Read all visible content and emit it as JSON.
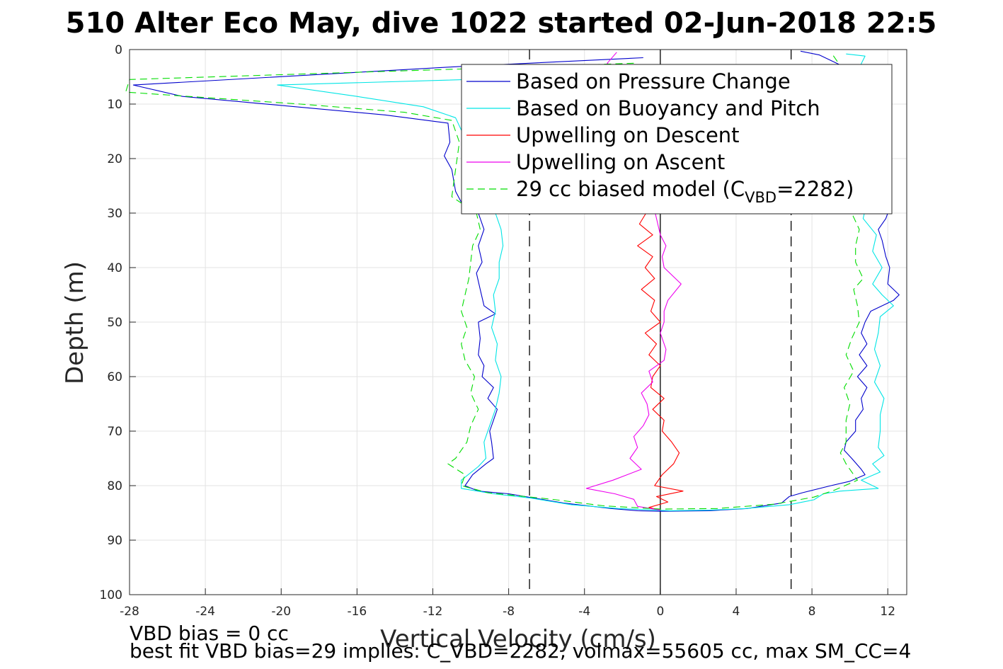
{
  "chart_data": {
    "type": "line",
    "title": "510 Alter Eco May, dive 1022 started 02-Jun-2018 22:5",
    "xlabel": "Vertical Velocity (cm/s)",
    "ylabel": "Depth (m)",
    "xlim": [
      -28,
      13
    ],
    "ylim": [
      0,
      100
    ],
    "y_reversed": true,
    "grid": true,
    "legend_position": "top-right",
    "xticks": [
      -28,
      -24,
      -20,
      -16,
      -12,
      -8,
      -4,
      0,
      4,
      8,
      12
    ],
    "yticks": [
      0,
      10,
      20,
      30,
      40,
      50,
      60,
      70,
      80,
      90,
      100
    ],
    "reference_lines": [
      {
        "x": 0,
        "style": "solid",
        "color": "#000000"
      },
      {
        "x": -6.9,
        "style": "dashed",
        "color": "#000000"
      },
      {
        "x": 6.9,
        "style": "dashed",
        "color": "#000000"
      }
    ],
    "legend": {
      "entries": [
        {
          "label": "Based on Pressure Change",
          "color": "#0000cc",
          "dash": "solid"
        },
        {
          "label": "Based on Buoyancy and Pitch",
          "color": "#00e5e5",
          "dash": "solid"
        },
        {
          "label": "Upwelling on Descent",
          "color": "#ff0000",
          "dash": "solid"
        },
        {
          "label": "Upwelling on Ascent",
          "color": "#ee00ee",
          "dash": "solid"
        },
        {
          "label_main": "29 cc biased model (C",
          "label_sub": "VBD",
          "label_tail": "=2282)",
          "color": "#00dd00",
          "dash": "dashed"
        }
      ]
    },
    "series": [
      {
        "name": "Based on Pressure Change",
        "color": "#0000cc",
        "dash": "solid",
        "points": [
          [
            -0.9,
            1.5
          ],
          [
            -11,
            3.2
          ],
          [
            -27.8,
            6.5
          ],
          [
            -25.2,
            8.6
          ],
          [
            -14.5,
            12
          ],
          [
            -11.2,
            13.5
          ],
          [
            -11.1,
            17
          ],
          [
            -11.4,
            19.5
          ],
          [
            -11,
            22
          ],
          [
            -10.8,
            26
          ],
          [
            -10.5,
            28
          ],
          [
            -9.6,
            30
          ],
          [
            -9.3,
            33
          ],
          [
            -9.6,
            36
          ],
          [
            -9.4,
            39
          ],
          [
            -9.7,
            41
          ],
          [
            -9.5,
            44
          ],
          [
            -9.3,
            47
          ],
          [
            -8.7,
            48.5
          ],
          [
            -9.6,
            50
          ],
          [
            -9.5,
            53
          ],
          [
            -9.6,
            56
          ],
          [
            -9.3,
            58
          ],
          [
            -9.4,
            60
          ],
          [
            -8.8,
            62
          ],
          [
            -9.1,
            64
          ],
          [
            -8.6,
            66
          ],
          [
            -8.8,
            68
          ],
          [
            -9.0,
            70
          ],
          [
            -8.9,
            72
          ],
          [
            -8.8,
            75
          ],
          [
            -9.2,
            76
          ],
          [
            -9.9,
            78
          ],
          [
            -10.3,
            80
          ],
          [
            -9.6,
            81
          ],
          [
            -8,
            81.5
          ],
          [
            -6.8,
            82.2
          ],
          [
            -5.1,
            83.2
          ],
          [
            -2.6,
            84.2
          ],
          [
            -1.2,
            84.6
          ],
          [
            0,
            84.7
          ],
          [
            2.6,
            84.6
          ],
          [
            4.6,
            84.2
          ],
          [
            6.4,
            83.2
          ],
          [
            6.8,
            82
          ],
          [
            7.5,
            81.3
          ],
          [
            9,
            80
          ],
          [
            10,
            79.2
          ],
          [
            10.8,
            78
          ],
          [
            10.6,
            77
          ],
          [
            10.1,
            75
          ],
          [
            9.7,
            73.5
          ],
          [
            9.8,
            72
          ],
          [
            10.3,
            70
          ],
          [
            10.3,
            68
          ],
          [
            10.7,
            66
          ],
          [
            10.6,
            64
          ],
          [
            10.9,
            62
          ],
          [
            10.4,
            60
          ],
          [
            10.9,
            58
          ],
          [
            10.5,
            56
          ],
          [
            10.9,
            54
          ],
          [
            10.6,
            52
          ],
          [
            10.8,
            50
          ],
          [
            11.1,
            48
          ],
          [
            12.3,
            46
          ],
          [
            12.6,
            45
          ],
          [
            12,
            43
          ],
          [
            12.1,
            40
          ],
          [
            11.9,
            38
          ],
          [
            11.7,
            35
          ],
          [
            11.5,
            33
          ],
          [
            11.9,
            31
          ],
          [
            12.2,
            28
          ],
          [
            11.8,
            25
          ],
          [
            11.7,
            20
          ],
          [
            11.4,
            15
          ],
          [
            10.9,
            10
          ],
          [
            10.4,
            6
          ],
          [
            9.6,
            3
          ],
          [
            8.4,
            1
          ],
          [
            7.4,
            0.3
          ]
        ]
      },
      {
        "name": "Based on Buoyancy and Pitch",
        "color": "#00e5e5",
        "dash": "solid",
        "points": [
          [
            -0.9,
            3.5
          ],
          [
            -5.2,
            5
          ],
          [
            -20.2,
            6.5
          ],
          [
            -16,
            8.6
          ],
          [
            -12.5,
            10.5
          ],
          [
            -10.8,
            12.5
          ],
          [
            -10.2,
            17
          ],
          [
            -10.3,
            22
          ],
          [
            -10.1,
            27
          ],
          [
            -8.7,
            30
          ],
          [
            -8.4,
            33
          ],
          [
            -8.3,
            36
          ],
          [
            -8.5,
            39
          ],
          [
            -8.5,
            42
          ],
          [
            -8.8,
            45
          ],
          [
            -8.7,
            48
          ],
          [
            -8.9,
            51
          ],
          [
            -8.6,
            54
          ],
          [
            -8.7,
            57
          ],
          [
            -8.4,
            60
          ],
          [
            -8.5,
            63
          ],
          [
            -8.7,
            66
          ],
          [
            -9.0,
            69
          ],
          [
            -9.3,
            72
          ],
          [
            -9.2,
            75
          ],
          [
            -9.6,
            76.5
          ],
          [
            -10.5,
            79
          ],
          [
            -10.5,
            80.5
          ],
          [
            -8.8,
            81.5
          ],
          [
            -6.8,
            82.3
          ],
          [
            -4.7,
            83.5
          ],
          [
            -2.2,
            84.2
          ],
          [
            0.5,
            84.6
          ],
          [
            2.6,
            84.5
          ],
          [
            4.5,
            84.2
          ],
          [
            6.8,
            83.5
          ],
          [
            8.1,
            82.6
          ],
          [
            8.6,
            81.5
          ],
          [
            9.5,
            81
          ],
          [
            11.5,
            80.5
          ],
          [
            10.6,
            79
          ],
          [
            11.6,
            77.5
          ],
          [
            11.2,
            76
          ],
          [
            11.8,
            74.5
          ],
          [
            11.5,
            73
          ],
          [
            11.6,
            70
          ],
          [
            11.6,
            67
          ],
          [
            11.8,
            64
          ],
          [
            11.3,
            61
          ],
          [
            11.6,
            58
          ],
          [
            11.3,
            55
          ],
          [
            11.5,
            52
          ],
          [
            11.6,
            49
          ],
          [
            12.3,
            47
          ],
          [
            11.7,
            45
          ],
          [
            11.2,
            43
          ],
          [
            11.7,
            40
          ],
          [
            11.2,
            37
          ],
          [
            11.4,
            34
          ],
          [
            10.7,
            31
          ],
          [
            10.9,
            28
          ],
          [
            10.7,
            24
          ],
          [
            10.6,
            19
          ],
          [
            10.5,
            14
          ],
          [
            10.7,
            10
          ],
          [
            10.4,
            7
          ],
          [
            10.4,
            4
          ],
          [
            10.8,
            1.2
          ],
          [
            9.8,
            0.8
          ]
        ]
      },
      {
        "name": "Upwelling on Descent",
        "color": "#ff0000",
        "dash": "solid",
        "points": [
          [
            -0.4,
            28
          ],
          [
            -1.1,
            32
          ],
          [
            -0.4,
            34
          ],
          [
            -1.2,
            36
          ],
          [
            -0.4,
            38
          ],
          [
            -0.8,
            40
          ],
          [
            -0.3,
            42
          ],
          [
            -1,
            44
          ],
          [
            -0.3,
            46
          ],
          [
            -0.5,
            48
          ],
          [
            0,
            50
          ],
          [
            -0.8,
            52
          ],
          [
            -0.2,
            54
          ],
          [
            -0.6,
            56
          ],
          [
            0,
            58
          ],
          [
            -0.4,
            60
          ],
          [
            -0.5,
            62
          ],
          [
            0.2,
            64
          ],
          [
            -0.4,
            66
          ],
          [
            0.2,
            68
          ],
          [
            0.1,
            70
          ],
          [
            0.6,
            72
          ],
          [
            1.0,
            74
          ],
          [
            0.7,
            76
          ],
          [
            0.1,
            78
          ],
          [
            -0.3,
            80
          ],
          [
            1.2,
            81
          ],
          [
            -0.2,
            82
          ],
          [
            0.4,
            83
          ],
          [
            -0.6,
            84
          ],
          [
            0,
            84.5
          ]
        ]
      },
      {
        "name": "Upwelling on Ascent",
        "color": "#ee00ee",
        "dash": "solid",
        "points": [
          [
            -2.3,
            0.5
          ],
          [
            -2.8,
            2.5
          ],
          [
            -1.8,
            5
          ],
          [
            -2.1,
            10
          ],
          [
            -1.8,
            15
          ],
          [
            -1.3,
            20
          ],
          [
            -1.1,
            25
          ],
          [
            -0.4,
            28
          ],
          [
            -0.2,
            31
          ],
          [
            0,
            34
          ],
          [
            0.3,
            36
          ],
          [
            0.1,
            38
          ],
          [
            0.2,
            40
          ],
          [
            1.1,
            43
          ],
          [
            0.4,
            46
          ],
          [
            0.2,
            48
          ],
          [
            0.2,
            50
          ],
          [
            0,
            52
          ],
          [
            0.3,
            55
          ],
          [
            0.2,
            57
          ],
          [
            -0.6,
            59
          ],
          [
            -0.4,
            61
          ],
          [
            -1.0,
            63
          ],
          [
            -0.7,
            65
          ],
          [
            -0.6,
            67
          ],
          [
            -0.9,
            69
          ],
          [
            -1.4,
            71
          ],
          [
            -1.2,
            73
          ],
          [
            -1.6,
            75
          ],
          [
            -1.0,
            77
          ],
          [
            -2.5,
            79
          ],
          [
            -3.9,
            80.5
          ],
          [
            -2.4,
            81.5
          ],
          [
            -1.4,
            82.5
          ],
          [
            -1.2,
            83.8
          ],
          [
            0,
            84.5
          ]
        ]
      },
      {
        "name": "29 cc biased model (C_VBD=2282)",
        "color": "#00dd00",
        "dash": "dashed",
        "points": [
          [
            -1.4,
            2.5
          ],
          [
            -10,
            3.5
          ],
          [
            -28,
            5.5
          ],
          [
            -28.2,
            7.8
          ],
          [
            -19,
            10
          ],
          [
            -13.5,
            11.5
          ],
          [
            -11,
            13
          ],
          [
            -10.6,
            17
          ],
          [
            -10.8,
            22
          ],
          [
            -11,
            27
          ],
          [
            -9.7,
            30
          ],
          [
            -9.5,
            33
          ],
          [
            -9.9,
            36
          ],
          [
            -10,
            39
          ],
          [
            -10.1,
            42
          ],
          [
            -10.3,
            45
          ],
          [
            -10.5,
            48
          ],
          [
            -10.2,
            51
          ],
          [
            -10.5,
            54
          ],
          [
            -10.3,
            57
          ],
          [
            -9.8,
            60
          ],
          [
            -10,
            63
          ],
          [
            -9.6,
            66
          ],
          [
            -10,
            69
          ],
          [
            -10.2,
            72
          ],
          [
            -10.8,
            75
          ],
          [
            -11.2,
            76
          ],
          [
            -10.3,
            78
          ],
          [
            -10.5,
            80
          ],
          [
            -9.1,
            81.3
          ],
          [
            -5.7,
            82.5
          ],
          [
            -3,
            83.7
          ],
          [
            0,
            84.3
          ],
          [
            3,
            84.2
          ],
          [
            6,
            83.4
          ],
          [
            8.1,
            82.1
          ],
          [
            9.2,
            80.8
          ],
          [
            10.4,
            79
          ],
          [
            9.8,
            76
          ],
          [
            9.5,
            74
          ],
          [
            9.8,
            72
          ],
          [
            9.8,
            68
          ],
          [
            10,
            65
          ],
          [
            9.7,
            62
          ],
          [
            10.2,
            59
          ],
          [
            9.8,
            56
          ],
          [
            10.1,
            53
          ],
          [
            10.5,
            50
          ],
          [
            10.4,
            47
          ],
          [
            10.2,
            44
          ],
          [
            10.7,
            42
          ],
          [
            10.3,
            39
          ],
          [
            10.3,
            36
          ],
          [
            10.5,
            33
          ],
          [
            10.1,
            30
          ],
          [
            10.3,
            26
          ],
          [
            10.4,
            22
          ],
          [
            10.6,
            18
          ],
          [
            10.3,
            14
          ],
          [
            10.3,
            10
          ],
          [
            10.3,
            6
          ],
          [
            9.5,
            3
          ],
          [
            9.1,
            1
          ]
        ]
      }
    ]
  },
  "footnotes": {
    "line1": "VBD bias = 0 cc",
    "line2": "best fit VBD bias=29 implies: C_VBD=2282, volmax=55605 cc, max SM_CC=4"
  }
}
